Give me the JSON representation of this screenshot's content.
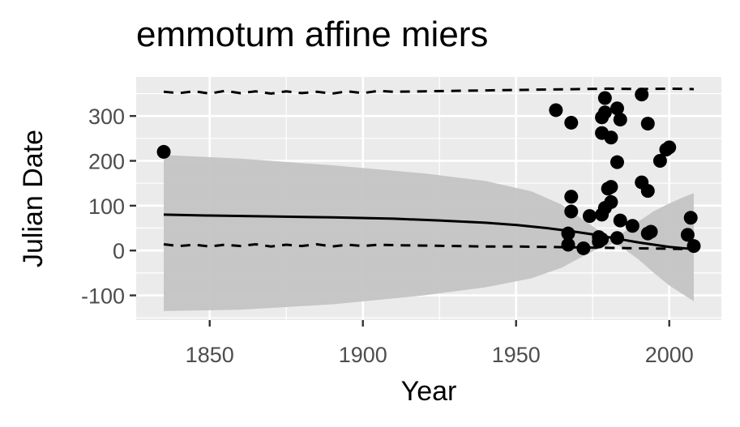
{
  "chart_data": {
    "type": "scatter",
    "title": "emmotum affine miers",
    "xlabel": "Year",
    "ylabel": "Julian Date",
    "xlim": [
      1826,
      2017
    ],
    "ylim": [
      -155,
      387
    ],
    "x_ticks": [
      1850,
      1900,
      1950,
      2000
    ],
    "x_tick_labels": [
      "1850",
      "1900",
      "1950",
      "2000"
    ],
    "y_ticks": [
      -100,
      0,
      100,
      200,
      300
    ],
    "y_tick_labels": [
      "-100",
      "0",
      "100",
      "200",
      "300"
    ],
    "grid": true,
    "legend": "none",
    "colors": {
      "panel": "#ebebeb",
      "grid": "#ffffff",
      "points": "#000000",
      "ribbon": "#c4c4c4",
      "line": "#000000"
    },
    "points": [
      {
        "x": 1835,
        "y": 220
      },
      {
        "x": 1963,
        "y": 313
      },
      {
        "x": 1967,
        "y": 38
      },
      {
        "x": 1967,
        "y": 13
      },
      {
        "x": 1968,
        "y": 285
      },
      {
        "x": 1968,
        "y": 120
      },
      {
        "x": 1968,
        "y": 87
      },
      {
        "x": 1972,
        "y": 5
      },
      {
        "x": 1974,
        "y": 77
      },
      {
        "x": 1977,
        "y": 20
      },
      {
        "x": 1977,
        "y": 30
      },
      {
        "x": 1978,
        "y": 297
      },
      {
        "x": 1978,
        "y": 262
      },
      {
        "x": 1978,
        "y": 80
      },
      {
        "x": 1978,
        "y": 25
      },
      {
        "x": 1979,
        "y": 340
      },
      {
        "x": 1979,
        "y": 308
      },
      {
        "x": 1979,
        "y": 95
      },
      {
        "x": 1980,
        "y": 138
      },
      {
        "x": 1981,
        "y": 252
      },
      {
        "x": 1981,
        "y": 142
      },
      {
        "x": 1981,
        "y": 108
      },
      {
        "x": 1983,
        "y": 317
      },
      {
        "x": 1983,
        "y": 197
      },
      {
        "x": 1983,
        "y": 28
      },
      {
        "x": 1984,
        "y": 292
      },
      {
        "x": 1984,
        "y": 67
      },
      {
        "x": 1988,
        "y": 55
      },
      {
        "x": 1991,
        "y": 348
      },
      {
        "x": 1991,
        "y": 152
      },
      {
        "x": 1993,
        "y": 283
      },
      {
        "x": 1993,
        "y": 133
      },
      {
        "x": 1993,
        "y": 38
      },
      {
        "x": 1994,
        "y": 42
      },
      {
        "x": 1997,
        "y": 200
      },
      {
        "x": 1999,
        "y": 225
      },
      {
        "x": 2000,
        "y": 230
      },
      {
        "x": 2006,
        "y": 35
      },
      {
        "x": 2007,
        "y": 73
      },
      {
        "x": 2008,
        "y": 10
      }
    ],
    "fit_line": {
      "x": [
        1835,
        1850,
        1870,
        1890,
        1910,
        1925,
        1940,
        1950,
        1960,
        1968,
        1975,
        1980,
        1985,
        1990,
        1995,
        2000,
        2005,
        2008
      ],
      "y": [
        80,
        78,
        76,
        74,
        71,
        67,
        62,
        57,
        50,
        43,
        36,
        30,
        24,
        18,
        13,
        8,
        5,
        3
      ]
    },
    "ribbon": {
      "x": [
        1835,
        1860,
        1890,
        1920,
        1940,
        1955,
        1965,
        1972,
        1977,
        1980,
        1982,
        1985,
        1990,
        1995,
        2000,
        2005,
        2008
      ],
      "upper": [
        213,
        205,
        190,
        172,
        155,
        132,
        102,
        68,
        45,
        30,
        25,
        40,
        65,
        88,
        105,
        120,
        128
      ],
      "lower": [
        -135,
        -132,
        -120,
        -100,
        -82,
        -62,
        -38,
        -12,
        5,
        10,
        18,
        5,
        -20,
        -50,
        -78,
        -100,
        -113
      ]
    },
    "dashed_upper": {
      "x": [
        1835,
        1840,
        1845,
        1850,
        1855,
        1860,
        1865,
        1870,
        1875,
        1880,
        1885,
        1890,
        1895,
        1900,
        1905,
        1910,
        1920,
        1930,
        1940,
        1950,
        1960,
        1970,
        1980,
        1990,
        2000,
        2008
      ],
      "y": [
        354,
        351,
        355,
        350,
        356,
        351,
        355,
        350,
        355,
        351,
        354,
        350,
        355,
        351,
        356,
        354,
        355,
        356,
        357,
        358,
        359,
        360,
        361,
        360,
        361,
        360
      ]
    },
    "dashed_lower": {
      "x": [
        1835,
        1840,
        1845,
        1850,
        1855,
        1860,
        1865,
        1870,
        1875,
        1880,
        1885,
        1890,
        1895,
        1900,
        1905,
        1910,
        1920,
        1930,
        1940,
        1950,
        1960,
        1970,
        1980,
        1990,
        2000,
        2008
      ],
      "y": [
        14,
        10,
        13,
        9,
        13,
        10,
        14,
        9,
        13,
        10,
        14,
        9,
        13,
        10,
        13,
        12,
        11,
        10,
        9,
        9,
        8,
        7,
        6,
        5,
        4,
        3
      ]
    }
  }
}
